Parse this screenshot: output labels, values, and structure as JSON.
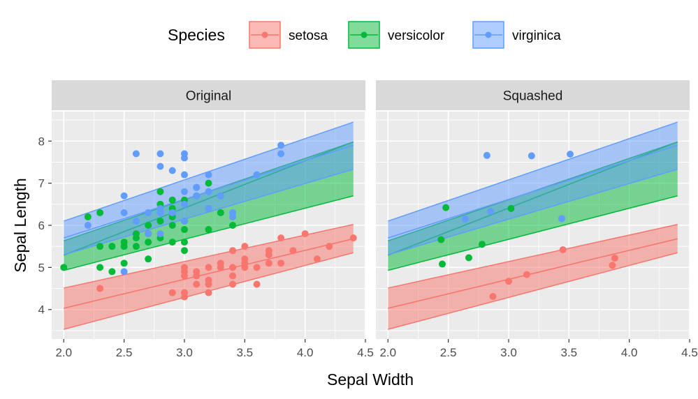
{
  "chart_data": {
    "type": "scatter",
    "xlabel": "Sepal Width",
    "ylabel": "Sepal Length",
    "xlim": [
      1.9,
      4.5
    ],
    "ylim": [
      3.3,
      8.7
    ],
    "x_ticks": [
      "2.0",
      "2.5",
      "3.0",
      "3.5",
      "4.0",
      "4.5"
    ],
    "y_ticks": [
      "4",
      "5",
      "6",
      "7",
      "8"
    ],
    "grid": true,
    "legend": {
      "title": "Species",
      "placement": "top",
      "entries": [
        "setosa",
        "versicolor",
        "virginica"
      ]
    },
    "colors": {
      "setosa": "#F8766D",
      "versicolor": "#00BA38",
      "virginica": "#619CFF"
    },
    "panels": [
      {
        "label": "Original",
        "series": [
          {
            "name": "setosa",
            "fit": {
              "x": [
                2.0,
                4.4
              ],
              "y": [
                4.03,
                5.68
              ],
              "lower": [
                3.53,
                5.35
              ],
              "upper": [
                4.51,
                6.02
              ]
            },
            "points": [
              [
                2.3,
                4.5
              ],
              [
                2.9,
                4.4
              ],
              [
                3.0,
                4.4
              ],
              [
                3.0,
                4.3
              ],
              [
                3.0,
                4.4
              ],
              [
                3.0,
                4.8
              ],
              [
                3.0,
                4.9
              ],
              [
                3.0,
                5.0
              ],
              [
                3.1,
                4.9
              ],
              [
                3.1,
                4.8
              ],
              [
                3.1,
                4.6
              ],
              [
                3.2,
                4.7
              ],
              [
                3.2,
                4.4
              ],
              [
                3.2,
                5.0
              ],
              [
                3.2,
                4.6
              ],
              [
                3.3,
                5.0
              ],
              [
                3.3,
                5.1
              ],
              [
                3.4,
                4.6
              ],
              [
                3.4,
                4.8
              ],
              [
                3.4,
                5.0
              ],
              [
                3.4,
                5.4
              ],
              [
                3.5,
                5.0
              ],
              [
                3.5,
                5.1
              ],
              [
                3.5,
                5.5
              ],
              [
                3.5,
                5.2
              ],
              [
                3.6,
                4.6
              ],
              [
                3.6,
                5.0
              ],
              [
                3.7,
                5.1
              ],
              [
                3.7,
                5.3
              ],
              [
                3.7,
                5.4
              ],
              [
                3.8,
                5.1
              ],
              [
                3.8,
                5.7
              ],
              [
                3.9,
                5.4
              ],
              [
                4.0,
                5.8
              ],
              [
                4.1,
                5.2
              ],
              [
                4.2,
                5.5
              ],
              [
                4.4,
                5.7
              ]
            ]
          },
          {
            "name": "versicolor",
            "fit": {
              "x": [
                2.0,
                4.4
              ],
              "y": [
                5.29,
                7.98
              ],
              "lower": [
                4.93,
                6.7
              ],
              "upper": [
                5.63,
                7.98
              ]
            },
            "points": [
              [
                2.0,
                5.0
              ],
              [
                2.2,
                6.2
              ],
              [
                2.3,
                6.3
              ],
              [
                2.3,
                5.5
              ],
              [
                2.3,
                5.0
              ],
              [
                2.4,
                4.9
              ],
              [
                2.4,
                5.5
              ],
              [
                2.5,
                5.5
              ],
              [
                2.5,
                5.1
              ],
              [
                2.5,
                5.6
              ],
              [
                2.6,
                5.7
              ],
              [
                2.6,
                5.8
              ],
              [
                2.6,
                5.5
              ],
              [
                2.7,
                5.2
              ],
              [
                2.7,
                5.6
              ],
              [
                2.7,
                5.8
              ],
              [
                2.7,
                6.0
              ],
              [
                2.8,
                6.8
              ],
              [
                2.8,
                6.5
              ],
              [
                2.8,
                6.1
              ],
              [
                2.8,
                5.7
              ],
              [
                2.9,
                6.6
              ],
              [
                2.9,
                6.2
              ],
              [
                2.9,
                5.6
              ],
              [
                2.9,
                6.4
              ],
              [
                2.9,
                6.0
              ],
              [
                3.0,
                5.9
              ],
              [
                3.0,
                5.6
              ],
              [
                3.0,
                6.1
              ],
              [
                3.0,
                5.4
              ],
              [
                3.0,
                6.6
              ],
              [
                3.1,
                6.9
              ],
              [
                3.1,
                6.7
              ],
              [
                3.2,
                7.0
              ],
              [
                3.2,
                5.9
              ],
              [
                3.2,
                6.4
              ],
              [
                3.3,
                6.3
              ],
              [
                3.4,
                6.0
              ]
            ]
          },
          {
            "name": "virginica",
            "fit": {
              "x": [
                2.0,
                4.4
              ],
              "y": [
                5.7,
                7.9
              ],
              "lower": [
                5.3,
                7.33
              ],
              "upper": [
                6.1,
                8.45
              ]
            },
            "points": [
              [
                2.2,
                6.0
              ],
              [
                2.5,
                4.9
              ],
              [
                2.5,
                6.7
              ],
              [
                2.5,
                6.3
              ],
              [
                2.6,
                7.7
              ],
              [
                2.6,
                6.1
              ],
              [
                2.7,
                6.3
              ],
              [
                2.7,
                5.8
              ],
              [
                2.8,
                6.3
              ],
              [
                2.8,
                7.7
              ],
              [
                2.8,
                7.4
              ],
              [
                2.8,
                5.8
              ],
              [
                2.8,
                6.4
              ],
              [
                2.9,
                7.3
              ],
              [
                2.9,
                6.3
              ],
              [
                3.0,
                7.7
              ],
              [
                3.0,
                7.6
              ],
              [
                3.0,
                7.2
              ],
              [
                3.0,
                6.8
              ],
              [
                3.0,
                6.5
              ],
              [
                3.0,
                6.1
              ],
              [
                3.1,
                6.9
              ],
              [
                3.1,
                6.7
              ],
              [
                3.2,
                7.2
              ],
              [
                3.2,
                6.4
              ],
              [
                3.2,
                6.8
              ],
              [
                3.3,
                6.7
              ],
              [
                3.4,
                6.3
              ],
              [
                3.4,
                6.2
              ],
              [
                3.6,
                7.2
              ],
              [
                3.8,
                7.9
              ],
              [
                3.8,
                7.7
              ]
            ]
          }
        ]
      },
      {
        "label": "Squashed",
        "series": [
          {
            "name": "setosa",
            "fit": {
              "x": [
                2.0,
                4.4
              ],
              "y": [
                4.03,
                5.68
              ],
              "lower": [
                3.53,
                5.35
              ],
              "upper": [
                4.51,
                6.02
              ]
            },
            "points": [
              [
                2.87,
                4.31
              ],
              [
                3.0,
                4.67
              ],
              [
                3.15,
                4.83
              ],
              [
                3.45,
                5.42
              ],
              [
                3.86,
                5.05
              ],
              [
                3.88,
                5.22
              ]
            ]
          },
          {
            "name": "versicolor",
            "fit": {
              "x": [
                2.0,
                4.4
              ],
              "y": [
                5.29,
                7.98
              ],
              "lower": [
                4.93,
                6.7
              ],
              "upper": [
                5.63,
                7.98
              ]
            },
            "points": [
              [
                2.44,
                5.66
              ],
              [
                2.45,
                5.08
              ],
              [
                2.48,
                6.42
              ],
              [
                2.67,
                5.23
              ],
              [
                2.78,
                5.55
              ],
              [
                3.02,
                6.4
              ]
            ]
          },
          {
            "name": "virginica",
            "fit": {
              "x": [
                2.0,
                4.4
              ],
              "y": [
                5.7,
                7.9
              ],
              "lower": [
                5.3,
                7.33
              ],
              "upper": [
                6.1,
                8.45
              ]
            },
            "points": [
              [
                2.64,
                6.15
              ],
              [
                2.82,
                7.66
              ],
              [
                2.85,
                6.33
              ],
              [
                3.19,
                7.65
              ],
              [
                3.44,
                6.16
              ],
              [
                3.51,
                7.69
              ]
            ]
          }
        ]
      }
    ]
  }
}
